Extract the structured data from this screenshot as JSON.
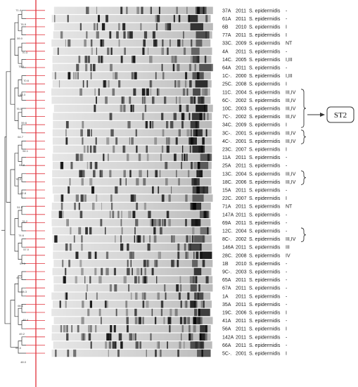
{
  "figure": {
    "st2_label": "ST2",
    "dendrogram_labels": [
      "71.4",
      "76.9",
      "59.0",
      "70.3",
      "75.0",
      "70.6",
      "66.3",
      "76.0",
      "59.6",
      "64.7",
      "54.1",
      "84.8",
      "76.2",
      "92.8",
      "51.9",
      "76.2",
      "74.6",
      "57.0",
      "67.1",
      "49.7",
      "58.3",
      "66.1",
      "48.4",
      "49.2",
      "64.0",
      "48.0"
    ],
    "colors": {
      "cutoff_line": "#e0303a",
      "leaf_ticks": "#e0303a",
      "tree": "#333333",
      "box_stroke": "#333333"
    },
    "isolates": [
      {
        "id": "37A",
        "year": "2011",
        "species": "S. epidermidis",
        "type": "-"
      },
      {
        "id": "61A",
        "year": "2011",
        "species": "S. epidermidis",
        "type": "-"
      },
      {
        "id": "6B",
        "year": "2010",
        "species": "S. epidermidis",
        "type": "I"
      },
      {
        "id": "77A",
        "year": "2011",
        "species": "S. epidermidis",
        "type": "I"
      },
      {
        "id": "33C.",
        "year": "2009",
        "species": "S. epidermidis",
        "type": "NT"
      },
      {
        "id": "4A",
        "year": "2011",
        "species": "S. epidermidis",
        "type": "-"
      },
      {
        "id": "14C.",
        "year": "2005",
        "species": "S. epidermidis",
        "type": "I,III"
      },
      {
        "id": "64A",
        "year": "2011",
        "species": "S. epidermidis",
        "type": "-"
      },
      {
        "id": "1C-.",
        "year": "2000",
        "species": "S. epidermidis",
        "type": "I,III"
      },
      {
        "id": "25C.",
        "year": "2008",
        "species": "S. epidermidis",
        "type": "I"
      },
      {
        "id": "11C.",
        "year": "2004",
        "species": "S. epidermidis",
        "type": "III,IV"
      },
      {
        "id": "6C-.",
        "year": "2002",
        "species": "S. epidermidis",
        "type": "III,IV"
      },
      {
        "id": "10C.",
        "year": "2003",
        "species": "S. epidermidis",
        "type": "III,IV"
      },
      {
        "id": "7C-.",
        "year": "2002",
        "species": "S. epidermidis",
        "type": "III,IV"
      },
      {
        "id": "34C.",
        "year": "2009",
        "species": "S. epidermidis",
        "type": "I"
      },
      {
        "id": "3C-.",
        "year": "2001",
        "species": "S. epidermidis",
        "type": "III,IV"
      },
      {
        "id": "4C-.",
        "year": "2001",
        "species": "S. epidermidis",
        "type": "III,IV"
      },
      {
        "id": "23C.",
        "year": "2007",
        "species": "S. epidermidis",
        "type": "I"
      },
      {
        "id": "11A",
        "year": "2011",
        "species": "S. epidermidis",
        "type": "-"
      },
      {
        "id": "25A",
        "year": "2011",
        "species": "S. epidermidis",
        "type": "-"
      },
      {
        "id": "13C.",
        "year": "2004",
        "species": "S. epidermidis",
        "type": "III,IV"
      },
      {
        "id": "18C.",
        "year": "2006",
        "species": "S. epidermidis",
        "type": "III,IV"
      },
      {
        "id": "15A",
        "year": "2011",
        "species": "S. epidermidis",
        "type": "-"
      },
      {
        "id": "22C.",
        "year": "2007",
        "species": "S. epidermidis",
        "type": "I"
      },
      {
        "id": "71A",
        "year": "2011",
        "species": "S. epidermidis",
        "type": "NT"
      },
      {
        "id": "147A",
        "year": "2011",
        "species": "S. epidermidis",
        "type": "-"
      },
      {
        "id": "69A",
        "year": "2011",
        "species": "S. epidermidis",
        "type": "-"
      },
      {
        "id": "12C.",
        "year": "2004",
        "species": "S. epidermidis",
        "type": "-"
      },
      {
        "id": "8C-.",
        "year": "2002",
        "species": "S. epidermidis",
        "type": "III,IV"
      },
      {
        "id": "146A",
        "year": "2011",
        "species": "S. epidermidis",
        "type": "III"
      },
      {
        "id": "28C.",
        "year": "2008",
        "species": "S. epidermidis",
        "type": "IV"
      },
      {
        "id": "1B",
        "year": "2010",
        "species": "S. epidermidis",
        "type": "-"
      },
      {
        "id": "9C-.",
        "year": "2003",
        "species": "S. epidermidis",
        "type": "-"
      },
      {
        "id": "65A",
        "year": "2011",
        "species": "S. epidermidis",
        "type": "-"
      },
      {
        "id": "67A",
        "year": "2011",
        "species": "S. epidermidis",
        "type": "-"
      },
      {
        "id": "1A",
        "year": "2011",
        "species": "S. epidermidis",
        "type": "-"
      },
      {
        "id": "35A",
        "year": "2011",
        "species": "S. epidermidis",
        "type": "-"
      },
      {
        "id": "19C.",
        "year": "2006",
        "species": "S. epidermidis",
        "type": "I"
      },
      {
        "id": "41A",
        "year": "2011",
        "species": "S. epidermidis",
        "type": "-"
      },
      {
        "id": "56A",
        "year": "2011",
        "species": "S. epidermidis",
        "type": "I"
      },
      {
        "id": "142A",
        "year": "2011",
        "species": "S. epidermidis",
        "type": "-"
      },
      {
        "id": "66A",
        "year": "2011",
        "species": "S. epidermidis",
        "type": "-"
      },
      {
        "id": "5C-.",
        "year": "2001",
        "species": "S. epidermidis",
        "type": "I"
      }
    ]
  }
}
